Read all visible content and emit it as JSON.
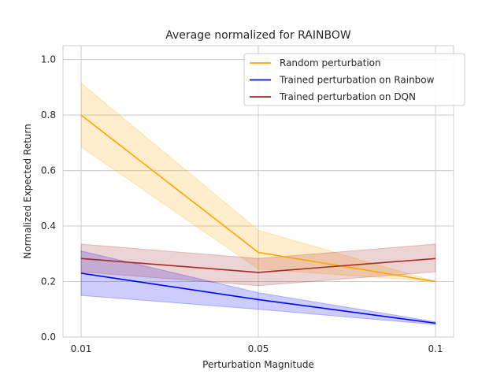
{
  "chart_data": {
    "type": "line",
    "title": "Average normalized for RAINBOW",
    "xlabel": "Perturbation Magnitude",
    "ylabel": "Normalized Expected Return",
    "categories": [
      "0.01",
      "0.05",
      "0.1"
    ],
    "ylim": [
      0,
      1.05
    ],
    "yticks": [
      "0.0",
      "0.2",
      "0.4",
      "0.6",
      "0.8",
      "1.0"
    ],
    "grid": true,
    "legend_position": "top-right",
    "series": [
      {
        "name": "Random perturbation",
        "color": "#ffa500",
        "values": [
          0.8,
          0.305,
          0.2
        ],
        "lower": [
          0.685,
          0.245,
          0.2
        ],
        "upper": [
          0.915,
          0.385,
          0.2
        ]
      },
      {
        "name": "Trained perturbation on Rainbow",
        "color": "#0000ff",
        "values": [
          0.23,
          0.135,
          0.05
        ],
        "lower": [
          0.15,
          0.1,
          0.045
        ],
        "upper": [
          0.31,
          0.16,
          0.055
        ]
      },
      {
        "name": "Trained perturbation on DQN",
        "color": "#a52a2a",
        "values": [
          0.283,
          0.233,
          0.283
        ],
        "lower": [
          0.235,
          0.185,
          0.235
        ],
        "upper": [
          0.335,
          0.283,
          0.335
        ]
      }
    ]
  }
}
